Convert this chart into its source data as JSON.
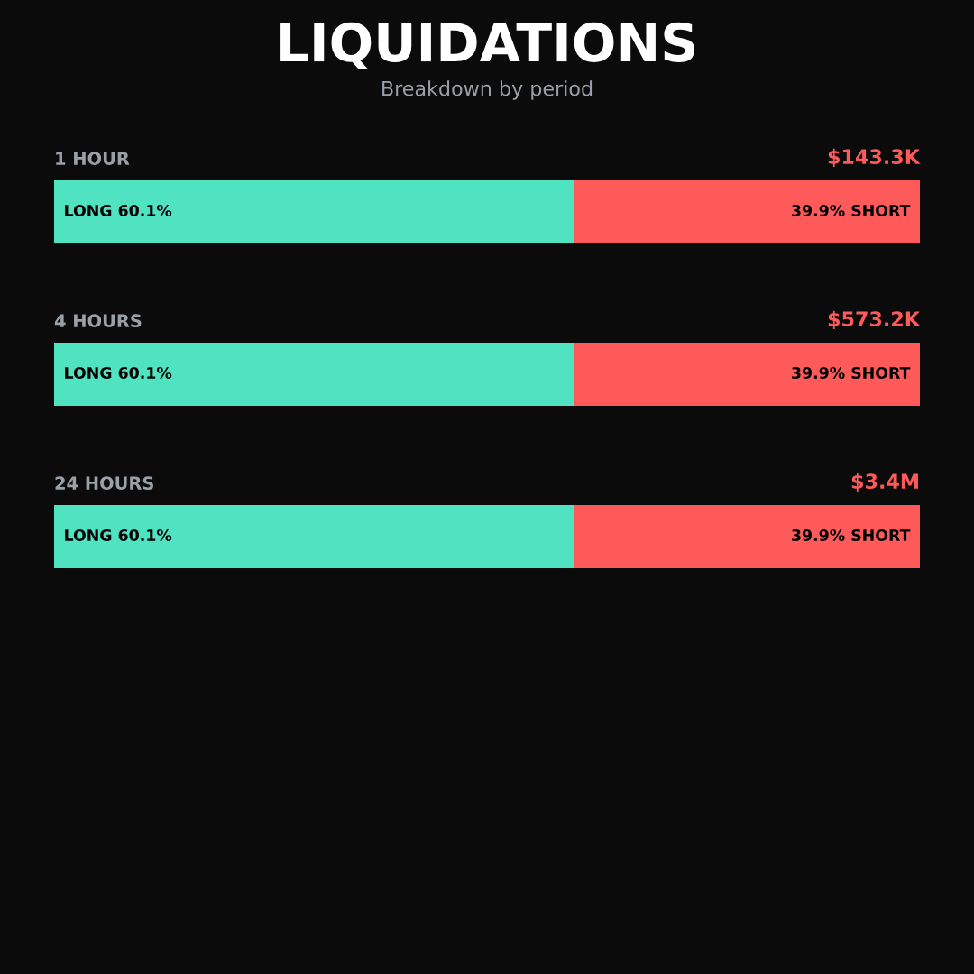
{
  "chart_data": {
    "type": "bar",
    "orientation": "horizontal",
    "stacked": true,
    "title": "LIQUIDATIONS",
    "subtitle": "Breakdown by period",
    "categories": [
      "1 HOUR",
      "4 HOURS",
      "24 HOURS"
    ],
    "series": [
      {
        "color": "#50e3c2",
        "values": [
          60.1,
          60.1,
          60.1
        ],
        "value_labels": [
          "LONG 60.1%",
          "LONG 60.1%",
          "LONG 60.1%"
        ]
      },
      {
        "color": "#ff5a5a",
        "values": [
          39.9,
          39.9,
          39.9
        ],
        "value_labels": [
          "39.9% SHORT",
          "39.9% SHORT",
          "39.9% SHORT"
        ]
      }
    ],
    "annotations": [
      "$143.3K",
      "$573.2K",
      "$3.4M"
    ]
  }
}
